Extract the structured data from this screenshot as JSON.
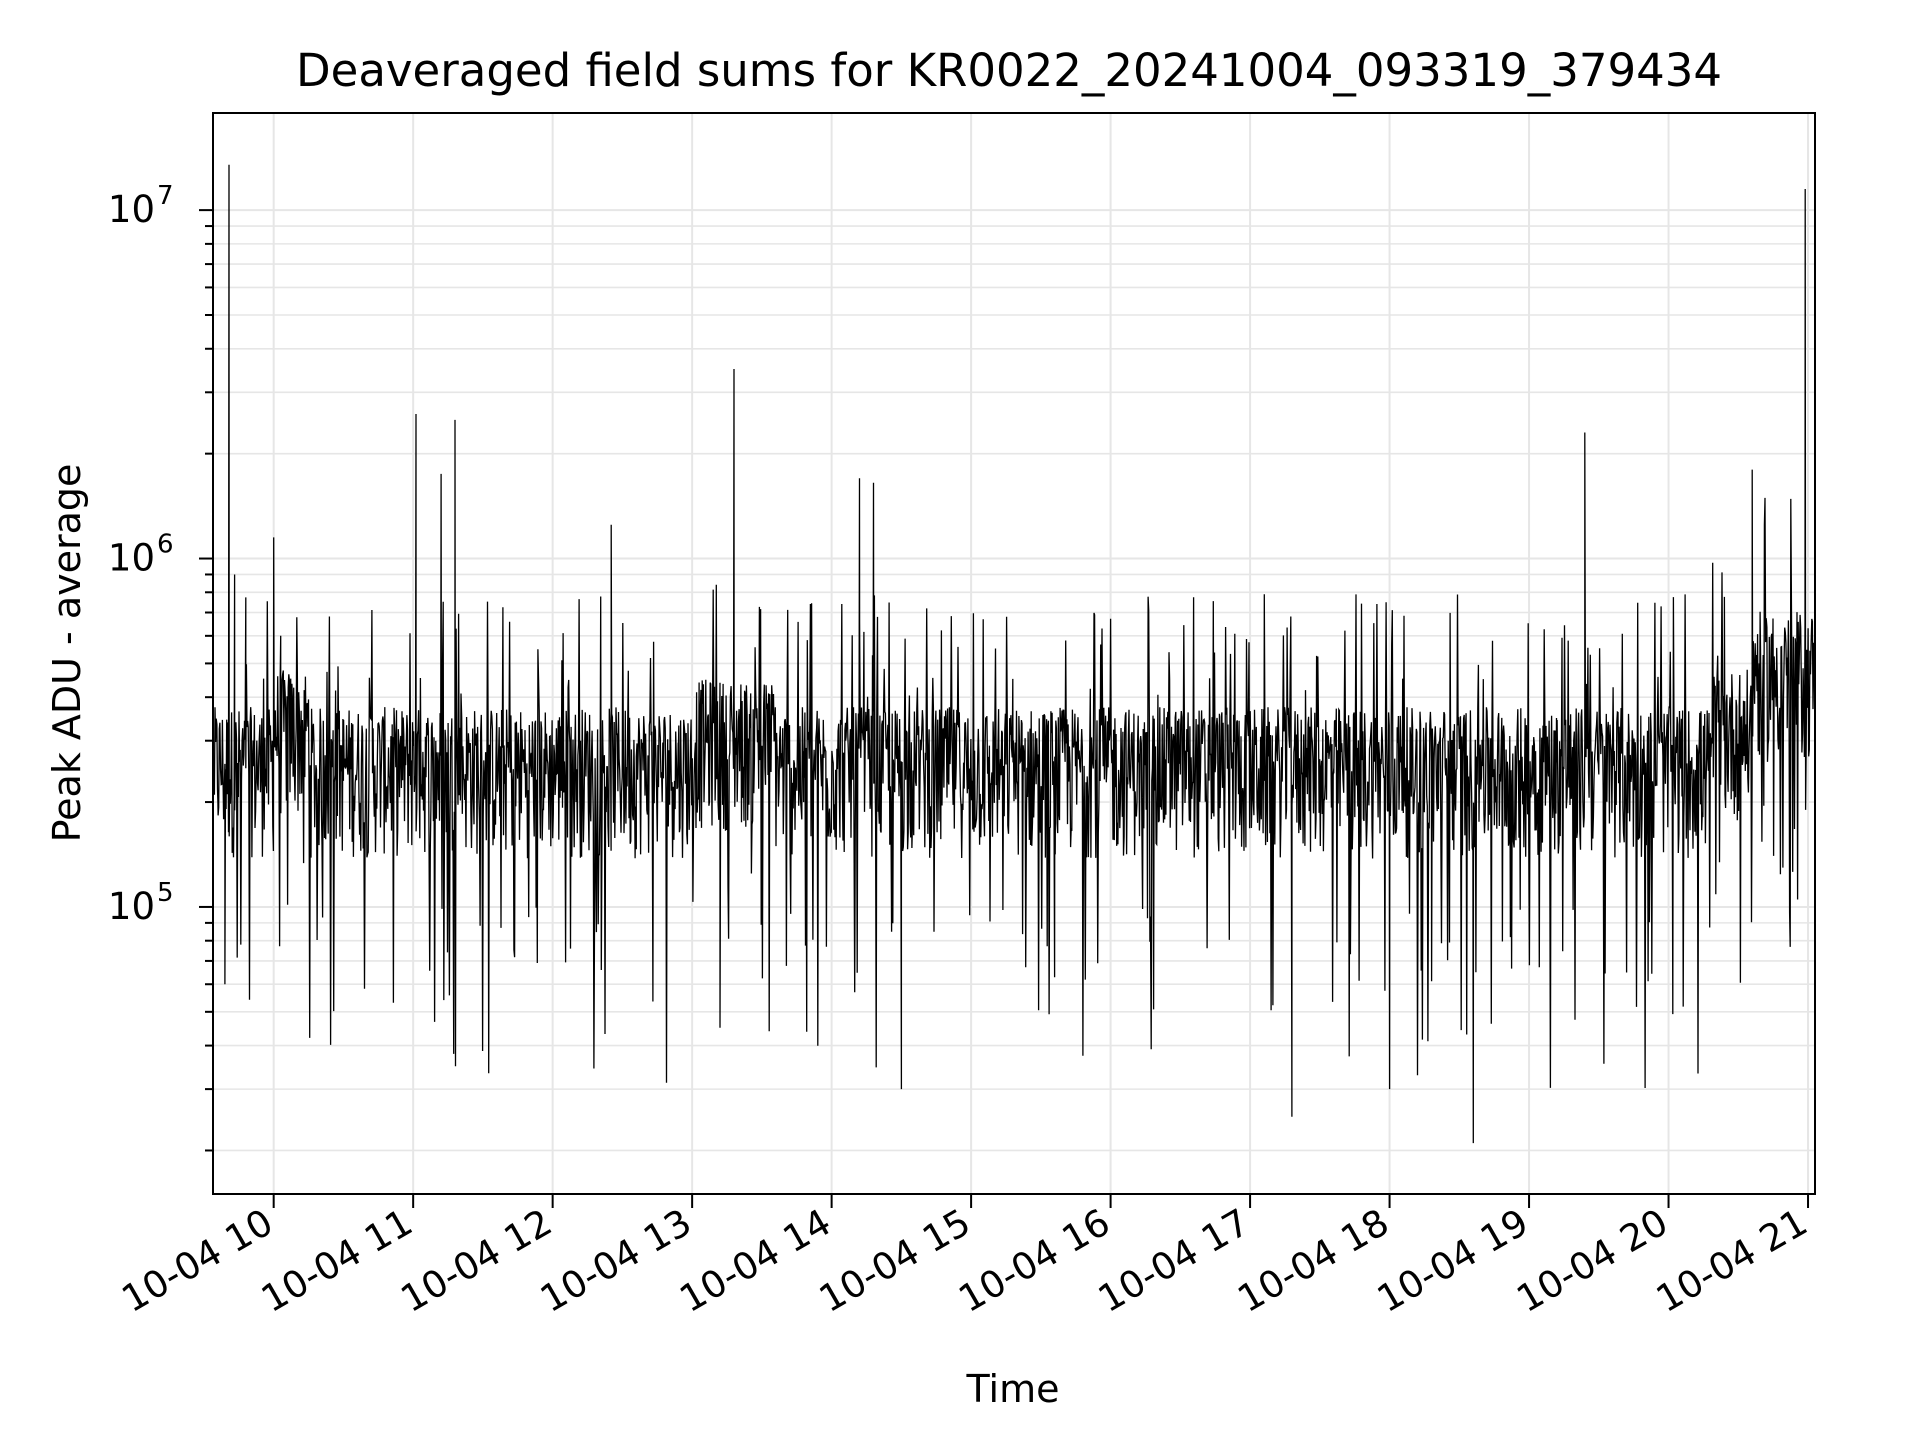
{
  "chart_data": {
    "type": "line",
    "title": "Deaveraged field sums for KR0022_20241004_093319_379434",
    "xlabel": "Time",
    "ylabel": "Peak ADU - average",
    "x_tick_labels": [
      "10-04 10",
      "10-04 11",
      "10-04 12",
      "10-04 13",
      "10-04 14",
      "10-04 15",
      "10-04 16",
      "10-04 17",
      "10-04 18",
      "10-04 19",
      "10-04 20",
      "10-04 21"
    ],
    "x_ticks_hours": [
      10,
      11,
      12,
      13,
      14,
      15,
      16,
      17,
      18,
      19,
      20,
      21
    ],
    "xlim_hours": [
      9.565,
      21.05
    ],
    "y_scale": "log",
    "y_tick_labels": [
      {
        "value": 100000,
        "base": "10",
        "exp": "5"
      },
      {
        "value": 1000000,
        "base": "10",
        "exp": "6"
      },
      {
        "value": 10000000,
        "base": "10",
        "exp": "7"
      }
    ],
    "ylim": [
      15000,
      19000000
    ],
    "grid": true,
    "line_color": "#000000",
    "grid_color": "#e6e6e6",
    "series": [
      {
        "x": [
          9.6,
          9.65,
          9.68,
          9.72,
          9.8,
          9.95,
          10.0,
          10.05,
          10.2,
          10.5,
          10.85,
          11.02,
          11.1,
          11.2,
          11.3,
          11.4,
          11.8,
          12.2,
          12.42,
          12.6,
          12.9,
          13.1,
          13.2,
          13.3,
          13.5,
          13.8,
          14.1,
          14.2,
          14.3,
          14.5,
          14.7,
          15.0,
          15.3,
          15.6,
          15.9,
          16.2,
          16.5,
          16.8,
          17.1,
          17.3,
          17.6,
          17.9,
          18.0,
          18.3,
          18.6,
          18.9,
          19.2,
          19.4,
          19.5,
          19.8,
          20.1,
          20.4,
          20.6,
          20.65,
          20.75,
          20.85,
          20.95,
          20.98,
          21.04
        ],
        "y": [
          200000,
          60000,
          13500000,
          900000,
          250000,
          280000,
          1150000,
          600000,
          260000,
          230000,
          280000,
          2600000,
          320000,
          1750000,
          2500000,
          290000,
          260000,
          300000,
          1250000,
          270000,
          260000,
          320000,
          45000,
          3500000,
          290000,
          280000,
          300000,
          1700000,
          1650000,
          30000,
          280000,
          250000,
          260000,
          270000,
          250000,
          260000,
          240000,
          250000,
          230000,
          25000,
          250000,
          240000,
          30000,
          260000,
          21000,
          250000,
          260000,
          2300000,
          240000,
          260000,
          270000,
          300000,
          1800000,
          500000,
          480000,
          520000,
          500000,
          11500000,
          480000
        ]
      }
    ]
  }
}
